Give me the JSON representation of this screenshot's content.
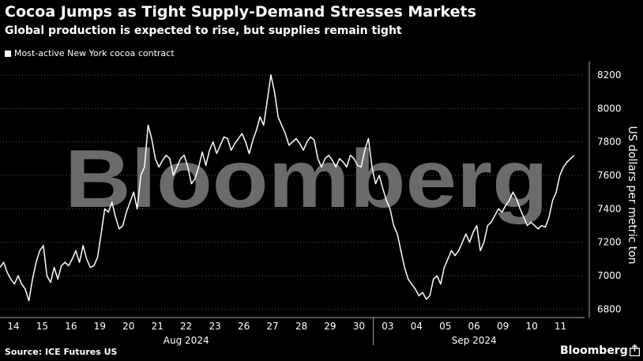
{
  "header": {
    "title": "Cocoa Jumps as Tight Supply-Demand Stresses Markets",
    "subtitle": "Global production is expected to rise, but supplies remain tight"
  },
  "footer": {
    "source": "Source: ICE Futures US",
    "brand": "Bloomberg"
  },
  "watermark": "Bloomberg",
  "chart_data": {
    "type": "line",
    "title": "Cocoa Jumps as Tight Supply-Demand Stresses Markets",
    "subtitle": "Global production is expected to rise, but supplies remain tight",
    "ylabel": "US dollars per metric ton",
    "ylim": [
      6750,
      8280
    ],
    "yticks": [
      6800,
      7000,
      7200,
      7400,
      7600,
      7800,
      8000,
      8200
    ],
    "y_axis_side": "right",
    "grid": "horizontal dotted",
    "legend_position": "top-left",
    "x_tick_labels": [
      "14",
      "15",
      "16",
      "19",
      "20",
      "21",
      "22",
      "23",
      "26",
      "27",
      "28",
      "29",
      "30",
      "03",
      "04",
      "05",
      "06",
      "09",
      "10",
      "11"
    ],
    "x_group_labels": [
      "Aug 2024",
      "Sep 2024"
    ],
    "x_group_sizes": [
      13,
      7
    ],
    "series": [
      {
        "name": "Most-active New York cocoa contract",
        "color": "#ffffff",
        "values": [
          7050,
          7080,
          7020,
          6980,
          6950,
          7000,
          6950,
          6920,
          6850,
          6980,
          7080,
          7150,
          7180,
          7000,
          6960,
          7050,
          6980,
          7060,
          7080,
          7060,
          7100,
          7150,
          7080,
          7180,
          7100,
          7050,
          7060,
          7110,
          7250,
          7400,
          7380,
          7440,
          7350,
          7280,
          7300,
          7380,
          7440,
          7500,
          7400,
          7600,
          7650,
          7900,
          7820,
          7700,
          7650,
          7690,
          7720,
          7700,
          7600,
          7650,
          7700,
          7720,
          7650,
          7550,
          7580,
          7650,
          7740,
          7660,
          7750,
          7800,
          7730,
          7780,
          7830,
          7820,
          7750,
          7790,
          7820,
          7850,
          7800,
          7730,
          7810,
          7870,
          7950,
          7900,
          8050,
          8200,
          8100,
          7950,
          7900,
          7850,
          7780,
          7800,
          7820,
          7790,
          7750,
          7800,
          7830,
          7810,
          7700,
          7650,
          7700,
          7720,
          7690,
          7650,
          7700,
          7680,
          7650,
          7720,
          7700,
          7660,
          7650,
          7750,
          7820,
          7650,
          7550,
          7600,
          7520,
          7450,
          7400,
          7300,
          7250,
          7150,
          7050,
          6980,
          6950,
          6920,
          6880,
          6900,
          6860,
          6880,
          6980,
          7000,
          6950,
          7050,
          7100,
          7150,
          7120,
          7150,
          7200,
          7250,
          7200,
          7260,
          7300,
          7150,
          7200,
          7300,
          7320,
          7360,
          7400,
          7380,
          7420,
          7450,
          7500,
          7460,
          7400,
          7350,
          7300,
          7320,
          7300,
          7280,
          7300,
          7290,
          7350,
          7450,
          7500,
          7600,
          7650,
          7680,
          7700,
          7720
        ]
      }
    ]
  }
}
